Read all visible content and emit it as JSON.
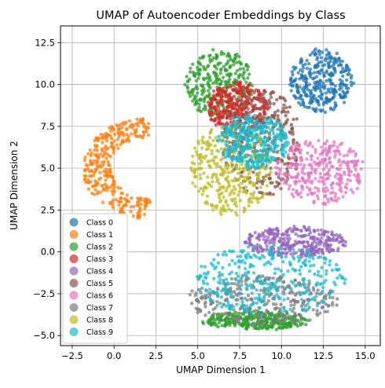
{
  "chart_data": {
    "type": "scatter",
    "title": "UMAP of Autoencoder Embeddings by Class",
    "xlabel": "UMAP Dimension 1",
    "ylabel": "UMAP Dimension 2",
    "xlim": [
      -3.2,
      15.9
    ],
    "ylim": [
      -5.6,
      13.5
    ],
    "xticks": [
      -2.5,
      0.0,
      2.5,
      5.0,
      7.5,
      10.0,
      12.5,
      15.0
    ],
    "xtick_labels": [
      "−2.5",
      "0.0",
      "2.5",
      "5.0",
      "7.5",
      "10.0",
      "12.5",
      "15.0"
    ],
    "yticks": [
      -5.0,
      -2.5,
      0.0,
      2.5,
      5.0,
      7.5,
      10.0,
      12.5
    ],
    "ytick_labels": [
      "−5.0",
      "−2.5",
      "0.0",
      "2.5",
      "5.0",
      "7.5",
      "10.0",
      "12.5"
    ],
    "grid": true,
    "legend_position": "lower-left",
    "series": [
      {
        "name": "Class 0",
        "color": "#1f77b4",
        "clusters": [
          {
            "cx": 12.4,
            "cy": 10.2,
            "rx": 1.9,
            "ry": 1.9
          }
        ]
      },
      {
        "name": "Class 1",
        "color": "#ff7f0e",
        "clusters": [
          {
            "shape": "arc",
            "cx": 2.4,
            "cy": 5.0,
            "r_outer": 4.3,
            "r_inner": 2.6,
            "angle_from": 95,
            "angle_to": 265
          }
        ]
      },
      {
        "name": "Class 2",
        "color": "#2ca02c",
        "clusters": [
          {
            "cx": 6.3,
            "cy": 10.0,
            "rx": 2.0,
            "ry": 2.1
          },
          {
            "cx": 8.4,
            "cy": -4.1,
            "rx": 3.2,
            "ry": 0.5
          }
        ]
      },
      {
        "name": "Class 3",
        "color": "#d62728",
        "clusters": [
          {
            "cx": 7.4,
            "cy": 8.6,
            "rx": 1.8,
            "ry": 1.5
          }
        ]
      },
      {
        "name": "Class 4",
        "color": "#9467bd",
        "clusters": [
          {
            "cx": 10.8,
            "cy": 0.6,
            "rx": 3.0,
            "ry": 0.9
          }
        ]
      },
      {
        "name": "Class 5",
        "color": "#8c564b",
        "clusters": [
          {
            "cx": 8.8,
            "cy": 6.5,
            "rx": 2.3,
            "ry": 3.3
          }
        ]
      },
      {
        "name": "Class 6",
        "color": "#e377c2",
        "clusters": [
          {
            "cx": 12.3,
            "cy": 4.8,
            "rx": 2.7,
            "ry": 1.9
          }
        ]
      },
      {
        "name": "Class 7",
        "color": "#7f7f7f",
        "clusters": [
          {
            "cx": 8.9,
            "cy": -2.9,
            "rx": 4.5,
            "ry": 1.5
          }
        ]
      },
      {
        "name": "Class 8",
        "color": "#bcbd22",
        "clusters": [
          {
            "cx": 7.0,
            "cy": 4.9,
            "rx": 2.5,
            "ry": 2.7
          }
        ]
      },
      {
        "name": "Class 9",
        "color": "#17becf",
        "clusters": [
          {
            "cx": 8.3,
            "cy": 6.6,
            "rx": 2.1,
            "ry": 1.6
          },
          {
            "cx": 9.3,
            "cy": -1.7,
            "rx": 4.5,
            "ry": 2.1
          }
        ]
      }
    ]
  }
}
